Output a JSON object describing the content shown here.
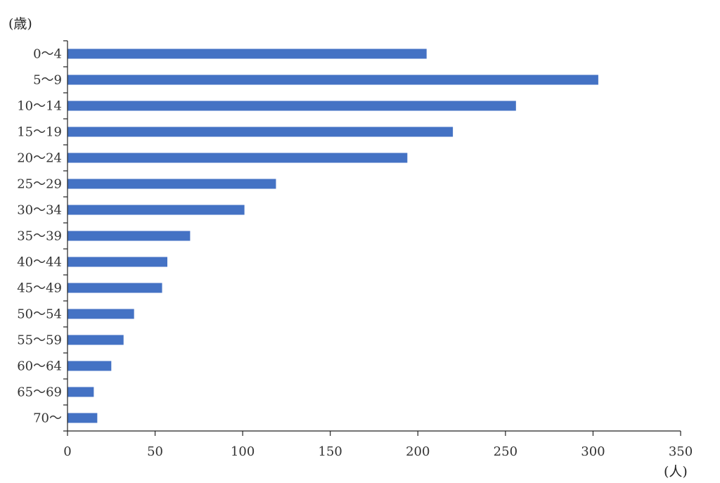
{
  "chart_data": {
    "type": "bar",
    "orientation": "horizontal",
    "y_unit_label": "(歳)",
    "x_unit_label": "(人)",
    "categories": [
      "0～4",
      "5～9",
      "10～14",
      "15～19",
      "20～24",
      "25～29",
      "30～34",
      "35～39",
      "40～44",
      "45～49",
      "50～54",
      "55～59",
      "60～64",
      "65～69",
      "70～"
    ],
    "values": [
      205,
      303,
      256,
      220,
      194,
      119,
      101,
      70,
      57,
      54,
      38,
      32,
      25,
      15,
      17
    ],
    "xlim": [
      0,
      350
    ],
    "x_ticks": [
      0,
      50,
      100,
      150,
      200,
      250,
      300,
      350
    ],
    "grid": false,
    "legend": "none",
    "bar_color": "#4472C4"
  }
}
